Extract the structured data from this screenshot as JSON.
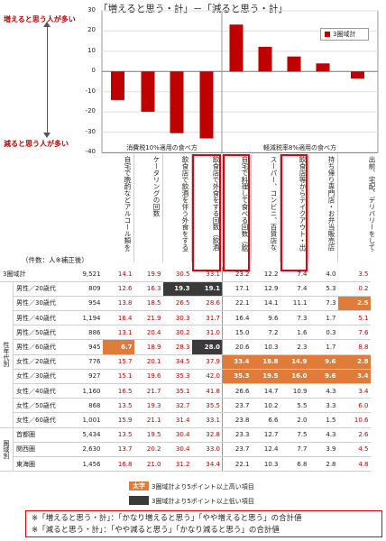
{
  "title": "「増えると思う・計」－「減ると思う・計」",
  "side_labels": {
    "up": "増えると思う人が多い",
    "down": "減ると思う人が多い"
  },
  "legend_label": "3圏域計",
  "y_ticks": [
    "30",
    "20",
    "10",
    "0",
    "-10",
    "-20",
    "-30",
    "-40"
  ],
  "section_labels": [
    "消費税10%適用の食べ方",
    "軽減税率8%適用の食べ方"
  ],
  "count_label": "（件数：人※補正後）",
  "columns": [
    "自宅で晩酌などアルコール類を飲む回数",
    "ケータリングの回数",
    "飲食店で飲酒を伴う外食をする回数（※飲酒のみの場合も含む）",
    "飲食店で外食をする回数（飲酒を除く）",
    "自宅で料理して食べる回数（飲酒を除く）",
    "スーパー、コンビニ、百貨店などで購入して持ち帰って食べる回数",
    "飲食店等からテイクアウト・出前をする回数",
    "持ち帰り専門店・お弁当販売店などを利用する回数",
    "出前、宅配、デリバリーをして食べる回数"
  ],
  "colors": {
    "series": "#c00000",
    "high": "#e07b39",
    "low": "#3a3a3a",
    "box": "#e60000"
  },
  "chart_data": {
    "type": "bar",
    "title": "「増えると思う・計」－「減ると思う・計」",
    "ylim": [
      -40,
      30
    ],
    "series": [
      {
        "name": "3圏域計",
        "values": [
          -14.1,
          -19.9,
          -30.5,
          -33.1,
          23.2,
          12.2,
          7.4,
          4.0,
          -3.5
        ]
      }
    ],
    "table": {
      "groups": [
        {
          "label": "",
          "rows": [
            {
              "name": "3圏域計",
              "n": "9,521",
              "values": [
                "14.1",
                "19.9",
                "30.5",
                "33.1",
                "23.2",
                "12.2",
                "7.4",
                "4.0",
                "3.5"
              ],
              "sign": [
                "-",
                "-",
                "-",
                "-",
                "+",
                "+",
                "+",
                "+",
                "-"
              ],
              "mark": [
                "",
                "",
                "",
                "",
                "",
                "",
                "",
                "",
                ""
              ]
            }
          ]
        },
        {
          "label": "性年代別",
          "rows": [
            {
              "name": "男性／20歳代",
              "n": "809",
              "values": [
                "12.6",
                "16.3",
                "19.3",
                "19.1",
                "17.1",
                "12.9",
                "7.4",
                "5.3",
                "0.2"
              ],
              "sign": [
                "-",
                "-",
                "-",
                "-",
                "+",
                "+",
                "+",
                "+",
                "-"
              ],
              "mark": [
                "",
                "",
                "lo",
                "lo",
                "",
                "",
                "",
                "",
                ""
              ]
            },
            {
              "name": "男性／30歳代",
              "n": "954",
              "values": [
                "13.8",
                "18.5",
                "26.5",
                "28.6",
                "22.1",
                "14.1",
                "11.1",
                "7.3",
                "2.5"
              ],
              "sign": [
                "-",
                "-",
                "-",
                "-",
                "+",
                "+",
                "+",
                "+",
                "+"
              ],
              "mark": [
                "",
                "",
                "",
                "",
                "",
                "",
                "",
                "",
                "hi"
              ]
            },
            {
              "name": "男性／40歳代",
              "n": "1,194",
              "values": [
                "16.4",
                "21.9",
                "30.3",
                "31.7",
                "16.4",
                "9.6",
                "7.3",
                "1.7",
                "5.1"
              ],
              "sign": [
                "-",
                "-",
                "-",
                "-",
                "+",
                "+",
                "+",
                "+",
                "-"
              ],
              "mark": [
                "",
                "",
                "",
                "",
                "",
                "",
                "",
                "",
                ""
              ]
            },
            {
              "name": "男性／50歳代",
              "n": "886",
              "values": [
                "13.1",
                "20.4",
                "30.2",
                "31.0",
                "15.0",
                "7.2",
                "1.6",
                "0.3",
                "7.6"
              ],
              "sign": [
                "-",
                "-",
                "-",
                "-",
                "+",
                "+",
                "+",
                "+",
                "-"
              ],
              "mark": [
                "",
                "",
                "",
                "",
                "",
                "",
                "",
                "",
                ""
              ]
            },
            {
              "name": "男性／60歳代",
              "n": "945",
              "values": [
                "6.7",
                "18.9",
                "28.3",
                "28.0",
                "20.6",
                "10.3",
                "2.3",
                "1.7",
                "8.8"
              ],
              "sign": [
                "-",
                "-",
                "-",
                "-",
                "+",
                "+",
                "+",
                "+",
                "-"
              ],
              "mark": [
                "hi",
                "",
                "",
                "lo",
                "",
                "",
                "",
                "",
                ""
              ]
            },
            {
              "name": "女性／20歳代",
              "n": "776",
              "values": [
                "15.7",
                "20.1",
                "34.5",
                "37.9",
                "33.4",
                "18.8",
                "14.9",
                "9.6",
                "2.8"
              ],
              "sign": [
                "-",
                "-",
                "-",
                "-",
                "+",
                "+",
                "+",
                "+",
                "+"
              ],
              "mark": [
                "",
                "",
                "",
                "",
                "hi",
                "hi",
                "hi",
                "hi",
                "hi"
              ]
            },
            {
              "name": "女性／30歳代",
              "n": "927",
              "values": [
                "15.1",
                "19.6",
                "35.3",
                "42.0",
                "35.3",
                "19.5",
                "16.0",
                "9.6",
                "3.4"
              ],
              "sign": [
                "-",
                "-",
                "-",
                "-",
                "+",
                "+",
                "+",
                "+",
                "+"
              ],
              "mark": [
                "",
                "",
                "",
                "",
                "hi",
                "hi",
                "hi",
                "hi",
                "hi"
              ]
            },
            {
              "name": "女性／40歳代",
              "n": "1,160",
              "values": [
                "16.5",
                "21.7",
                "35.1",
                "41.8",
                "26.6",
                "14.7",
                "10.9",
                "4.3",
                "3.4"
              ],
              "sign": [
                "-",
                "-",
                "-",
                "-",
                "+",
                "+",
                "+",
                "+",
                "-"
              ],
              "mark": [
                "",
                "",
                "",
                "",
                "",
                "",
                "",
                "",
                ""
              ]
            },
            {
              "name": "女性／50歳代",
              "n": "868",
              "values": [
                "13.5",
                "19.3",
                "32.7",
                "35.5",
                "23.7",
                "10.2",
                "5.5",
                "3.3",
                "6.0"
              ],
              "sign": [
                "-",
                "-",
                "-",
                "-",
                "+",
                "+",
                "+",
                "+",
                "-"
              ],
              "mark": [
                "",
                "",
                "",
                "",
                "",
                "",
                "",
                "",
                ""
              ]
            },
            {
              "name": "女性／60歳代",
              "n": "1,001",
              "values": [
                "15.9",
                "21.1",
                "31.4",
                "33.1",
                "23.8",
                "6.6",
                "2.0",
                "1.5",
                "10.6"
              ],
              "sign": [
                "-",
                "-",
                "-",
                "-",
                "+",
                "+",
                "+",
                "+",
                "-"
              ],
              "mark": [
                "",
                "",
                "",
                "",
                "",
                "",
                "",
                "",
                ""
              ]
            }
          ]
        },
        {
          "label": "圏域別",
          "rows": [
            {
              "name": "首都圏",
              "n": "5,434",
              "values": [
                "13.5",
                "19.5",
                "30.4",
                "32.8",
                "23.3",
                "12.7",
                "7.5",
                "4.3",
                "2.6"
              ],
              "sign": [
                "-",
                "-",
                "-",
                "-",
                "+",
                "+",
                "+",
                "+",
                "-"
              ],
              "mark": [
                "",
                "",
                "",
                "",
                "",
                "",
                "",
                "",
                ""
              ]
            },
            {
              "name": "関西圏",
              "n": "2,630",
              "values": [
                "13.7",
                "20.2",
                "30.4",
                "33.0",
                "23.7",
                "12.4",
                "7.7",
                "3.9",
                "4.5"
              ],
              "sign": [
                "-",
                "-",
                "-",
                "-",
                "+",
                "+",
                "+",
                "+",
                "-"
              ],
              "mark": [
                "",
                "",
                "",
                "",
                "",
                "",
                "",
                "",
                ""
              ]
            },
            {
              "name": "東海圏",
              "n": "1,456",
              "values": [
                "16.8",
                "21.0",
                "31.2",
                "34.4",
                "22.1",
                "10.3",
                "6.8",
                "2.8",
                "4.8"
              ],
              "sign": [
                "-",
                "-",
                "-",
                "-",
                "+",
                "+",
                "+",
                "+",
                "-"
              ],
              "mark": [
                "",
                "",
                "",
                "",
                "",
                "",
                "",
                "",
                ""
              ]
            }
          ]
        }
      ]
    }
  },
  "notes": {
    "high_tag": "太字",
    "high": "3圏域計より5ポイント以上高い項目",
    "low": "3圏域計より5ポイント以上低い項目"
  },
  "footnotes": [
    "※「増えると思う・計」：「かなり増えると思う」「やや増えると思う」の合計値",
    "※「減ると思う・計」：「やや減ると思う」「かなり減ると思う」の合計値"
  ]
}
